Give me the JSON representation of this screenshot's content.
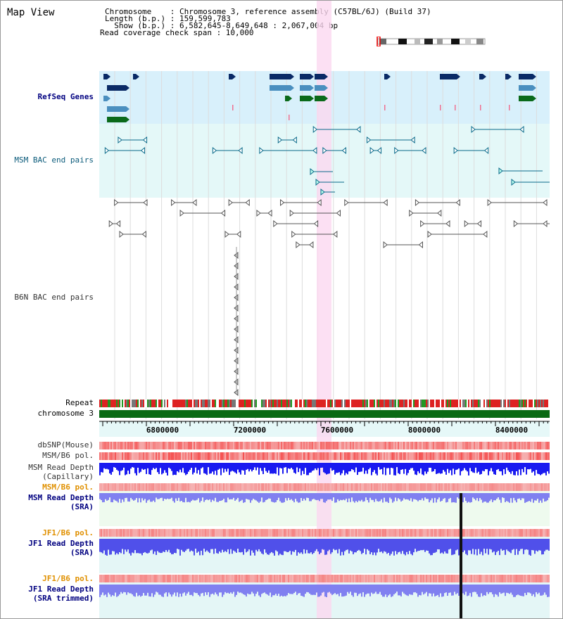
{
  "header": {
    "title": "Map View",
    "chromosome_line": "Chromosome    : Chromosome 3, reference assembly (C57BL/6J) (Build 37)",
    "length_line": "Length (b.p.) : 159,599,783",
    "show_line": "  Show (b.p.) : 6,582,645-8,649,648 : 2,067,004 bp",
    "coverage_line": "Read coverage check span : 10,000"
  },
  "tracks": {
    "refseq": "RefSeq Genes",
    "msm_bac": "MSM BAC end pairs",
    "b6n_bac": "B6N BAC end pairs",
    "repeat": "Repeat",
    "chromosome": "chromosome 3",
    "dbsnp": "dbSNP(Mouse)",
    "msm_b6_pol": "MSM/B6 pol.",
    "msm_read_cap_1": "MSM Read Depth",
    "msm_read_cap_2": "(Capillary)",
    "msm_b6_pol_sra": "MSM/B6 pol.",
    "msm_read_sra_1": "MSM Read Depth",
    "msm_read_sra_2": "(SRA)",
    "jf1_b6_pol": "JF1/B6 pol.",
    "jf1_read_1": "JF1 Read Depth",
    "jf1_read_2": "(SRA)",
    "jf1_b6_pol_2": "JF1/B6 pol.",
    "jf1_trim_1": "JF1 Read Depth",
    "jf1_trim_2": "(SRA trimmed)"
  },
  "ruler": {
    "ticks": [
      "6800000",
      "7200000",
      "7600000",
      "8000000",
      "8400000"
    ]
  },
  "colors": {
    "refseq_bg": "#d8f0fb",
    "msm_bg": "#e4f8f8",
    "highlight": "#fbd8f0",
    "navy_gene": "#0a2a66",
    "steel_gene": "#4a8fbf",
    "green_gene": "#0a6a1a",
    "chromosome_bar": "#0a6a14",
    "depth_blue": "#2020e0",
    "depth_light": "#8080f0"
  }
}
